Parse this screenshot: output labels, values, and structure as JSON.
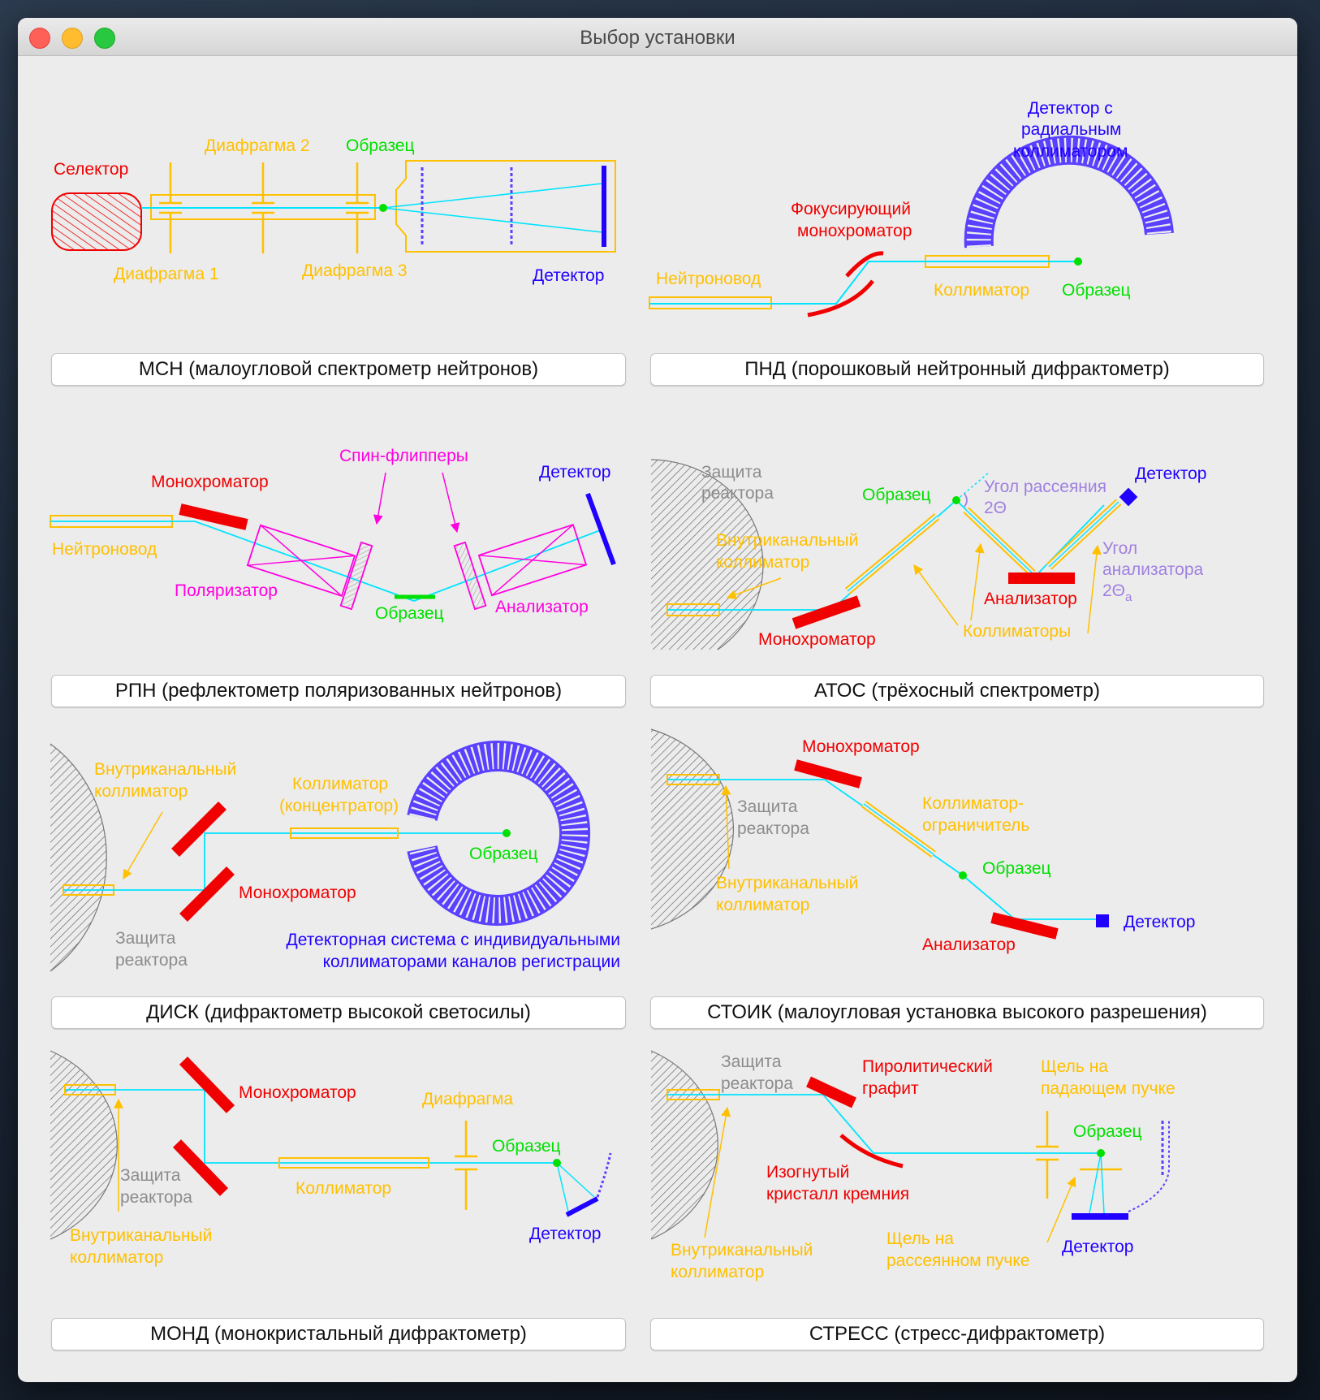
{
  "window": {
    "title": "Выбор установки"
  },
  "buttons": {
    "msn": "МСН (малоугловой спектрометр нейтронов)",
    "pnd": "ПНД (порошковый нейтронный дифрактометр)",
    "rpn": "РПН (рефлектометр поляризованных нейтронов)",
    "atos": "АТОС (трёхосный спектрометр)",
    "disk": "ДИСК (дифрактометр высокой светосилы)",
    "stoik": "СТОИК (малоугловая установка высокого разрешения)",
    "mond": "МОНД (монокристальный дифрактометр)",
    "stress": "СТРЕСС (стресс-дифрактометр)"
  },
  "diagrams": {
    "msn": {
      "selector": "Селектор",
      "d1": "Диафрагма 1",
      "d2": "Диафрагма 2",
      "d3": "Диафрагма 3",
      "sample": "Образец",
      "detector": "Детектор"
    },
    "pnd": {
      "det1": "Детектор с",
      "det2": "радиальным",
      "det3": "коллиматором",
      "mono1": "Фокусирующий",
      "mono2": "монохроматор",
      "guide": "Нейтроновод",
      "coll": "Коллиматор",
      "sample": "Образец"
    },
    "rpn": {
      "spin": "Спин-флипперы",
      "mono": "Монохроматор",
      "det": "Детектор",
      "guide": "Нейтроновод",
      "pol": "Поляризатор",
      "sample": "Образец",
      "anal": "Анализатор"
    },
    "atos": {
      "shield1": "Защита",
      "shield2": "реактора",
      "sample": "Образец",
      "angle1": "Угол рассеяния",
      "angle2": "2Θ",
      "det": "Детектор",
      "inch1": "Внутриканальный",
      "inch2": "коллиматор",
      "aangle1": "Угол",
      "aangle2": "анализатора",
      "aangle3": "2Θ",
      "aangle_sub": "a",
      "anal": "Анализатор",
      "mono": "Монохроматор",
      "colls": "Коллиматоры"
    },
    "disk": {
      "inch1": "Внутриканальный",
      "inch2": "коллиматор",
      "coll1": "Коллиматор",
      "coll2": "(концентратор)",
      "sample": "Образец",
      "mono": "Монохроматор",
      "shield1": "Защита",
      "shield2": "реактора",
      "det1": "Детекторная система с индивидуальными",
      "det2": "коллиматорами каналов регистрации"
    },
    "stoik": {
      "mono": "Монохроматор",
      "shield1": "Защита",
      "shield2": "реактора",
      "limit1": "Коллиматор-",
      "limit2": "ограничитель",
      "sample": "Образец",
      "inch1": "Внутриканальный",
      "inch2": "коллиматор",
      "det": "Детектор",
      "anal": "Анализатор"
    },
    "mond": {
      "mono": "Монохроматор",
      "diaph": "Диафрагма",
      "sample": "Образец",
      "shield1": "Защита",
      "shield2": "реактора",
      "coll": "Коллиматор",
      "inch1": "Внутриканальный",
      "inch2": "коллиматор",
      "det": "Детектор"
    },
    "stress": {
      "shield1": "Защита",
      "shield2": "реактора",
      "pg1": "Пиролитический",
      "pg2": "графит",
      "slit_in1": "Щель на",
      "slit_in2": "падающем пучке",
      "sample": "Образец",
      "si1": "Изогнутый",
      "si2": "кристалл кремния",
      "inch1": "Внутриканальный",
      "inch2": "коллиматор",
      "slit_sc1": "Щель на",
      "slit_sc2": "рассеянном пучке",
      "det": "Детектор"
    }
  },
  "colors": {
    "red": "#f00000",
    "orange": "#ffc000",
    "green": "#00e000",
    "blue": "#0000ff",
    "purple": "#5a40ff",
    "magenta": "#ff00e0",
    "cyan": "#00e4ff",
    "gray": "#8c8c8c",
    "lavender": "#a080e0"
  }
}
